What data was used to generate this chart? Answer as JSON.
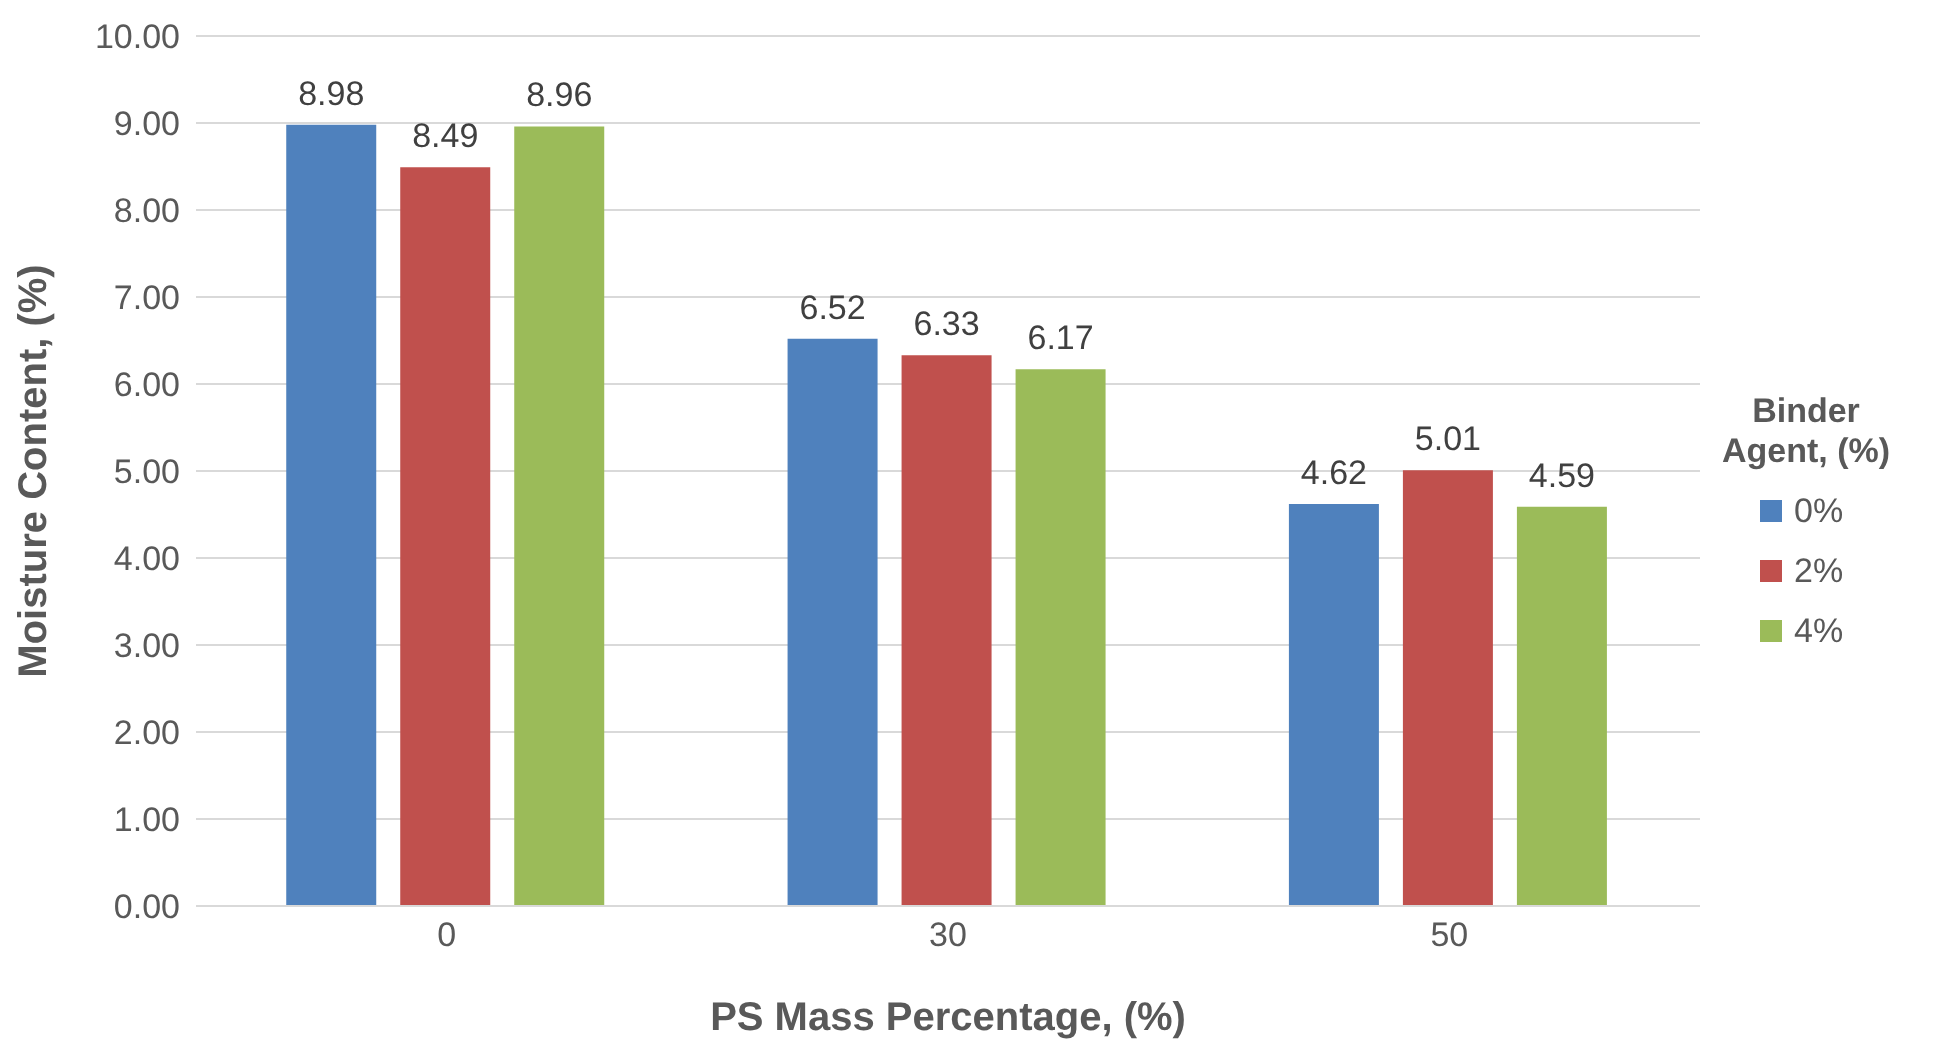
{
  "chart_data": {
    "type": "bar",
    "xlabel": "PS Mass Percentage, (%)",
    "ylabel": "Moisture Content, (%)",
    "legend_title": "Binder Agent, (%)",
    "categories": [
      "0",
      "30",
      "50"
    ],
    "series": [
      {
        "name": "0%",
        "color": "#4f81bd",
        "values": [
          8.98,
          6.52,
          4.62
        ]
      },
      {
        "name": "2%",
        "color": "#c0504d",
        "values": [
          8.49,
          6.33,
          5.01
        ]
      },
      {
        "name": "4%",
        "color": "#9bbb59",
        "values": [
          8.96,
          6.17,
          4.59
        ]
      }
    ],
    "ylim": [
      0,
      10
    ],
    "yticks": [
      {
        "value": 0,
        "label": "0.00"
      },
      {
        "value": 1,
        "label": "1.00"
      },
      {
        "value": 2,
        "label": "2.00"
      },
      {
        "value": 3,
        "label": "3.00"
      },
      {
        "value": 4,
        "label": "4.00"
      },
      {
        "value": 5,
        "label": "5.00"
      },
      {
        "value": 6,
        "label": "6.00"
      },
      {
        "value": 7,
        "label": "7.00"
      },
      {
        "value": 8,
        "label": "8.00"
      },
      {
        "value": 9,
        "label": "9.00"
      },
      {
        "value": 10,
        "label": "10.00"
      }
    ],
    "grid": "y",
    "legend": "right",
    "data_labels": true
  }
}
